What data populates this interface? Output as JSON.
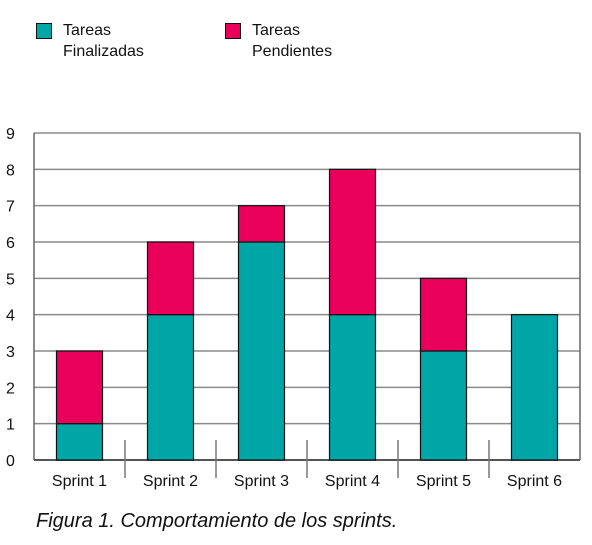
{
  "chart_data": {
    "type": "bar",
    "stacked": true,
    "categories": [
      "Sprint 1",
      "Sprint 2",
      "Sprint 3",
      "Sprint 4",
      "Sprint 5",
      "Sprint 6"
    ],
    "series": [
      {
        "name": "Tareas Finalizadas",
        "name_lines": [
          "Tareas",
          "Finalizadas"
        ],
        "color": "#00a6a6",
        "values": [
          1,
          4,
          6,
          4,
          3,
          4
        ]
      },
      {
        "name": "Tareas Pendientes",
        "name_lines": [
          "Tareas",
          "Pendientes"
        ],
        "color": "#e8005a",
        "values": [
          2,
          2,
          1,
          4,
          2,
          0
        ]
      }
    ],
    "yticks": [
      0,
      1,
      2,
      3,
      4,
      5,
      6,
      7,
      8,
      9
    ],
    "ylim": [
      0,
      9
    ],
    "grid": true,
    "legend_position": "top-left",
    "title": "",
    "xlabel": "",
    "ylabel": ""
  },
  "caption": "Figura 1. Comportamiento de los sprints."
}
